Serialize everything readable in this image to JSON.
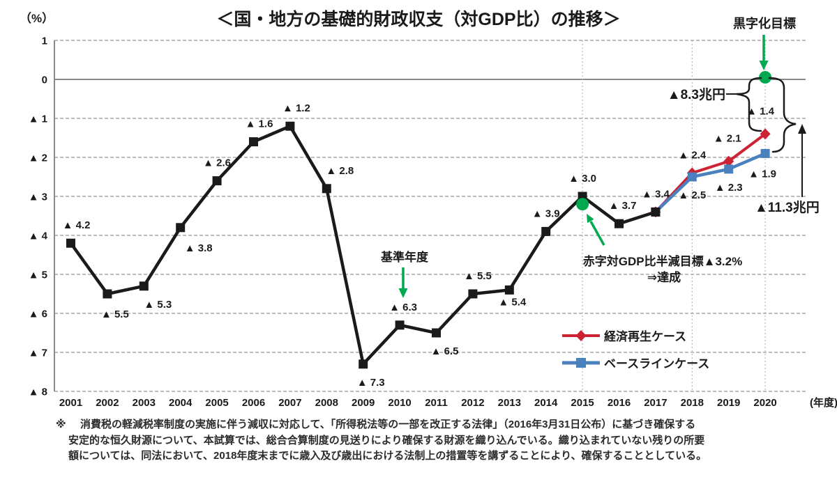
{
  "header": {
    "unit_label": "（%）",
    "title": "＜国・地方の基礎的財政収支（対GDP比）の推移＞"
  },
  "chart_data": {
    "type": "line",
    "title": "国・地方の基礎的財政収支（対GDP比）の推移",
    "y_unit": "（%）",
    "x_unit": "(年度)",
    "ylim": [
      -8,
      1
    ],
    "grid": true,
    "years": [
      2001,
      2002,
      2003,
      2004,
      2005,
      2006,
      2007,
      2008,
      2009,
      2010,
      2011,
      2012,
      2013,
      2014,
      2015,
      2016,
      2017,
      2018,
      2019,
      2020
    ],
    "yticks": [
      {
        "v": 1,
        "label": "1"
      },
      {
        "v": 0,
        "label": "0"
      },
      {
        "v": -1,
        "label": "▲ 1"
      },
      {
        "v": -2,
        "label": "▲ 2"
      },
      {
        "v": -3,
        "label": "▲ 3"
      },
      {
        "v": -4,
        "label": "▲ 4"
      },
      {
        "v": -5,
        "label": "▲ 5"
      },
      {
        "v": -6,
        "label": "▲ 6"
      },
      {
        "v": -7,
        "label": "▲ 7"
      },
      {
        "v": -8,
        "label": "▲ 8"
      }
    ],
    "vlines": [
      2015,
      2018,
      2020
    ],
    "series": [
      {
        "id": "actual",
        "color": "#1a1a1a",
        "marker": "square",
        "width": 4.5,
        "points": [
          {
            "year": 2001,
            "value": -4.2,
            "label": "▲ 4.2",
            "pos": "above",
            "dx": 8
          },
          {
            "year": 2002,
            "value": -5.5,
            "label": "▲ 5.5",
            "pos": "below",
            "dx": 11,
            "dy": 3
          },
          {
            "year": 2003,
            "value": -5.3,
            "label": "▲ 5.3",
            "pos": "below",
            "dx": 20
          },
          {
            "year": 2004,
            "value": -3.8,
            "label": "▲ 3.8",
            "pos": "below",
            "dx": 26,
            "dy": 3
          },
          {
            "year": 2005,
            "value": -2.6,
            "label": "▲ 2.6",
            "pos": "above",
            "dx": 0
          },
          {
            "year": 2006,
            "value": -1.6,
            "label": "▲ 1.6",
            "pos": "above",
            "dx": 8
          },
          {
            "year": 2007,
            "value": -1.2,
            "label": "▲ 1.2",
            "pos": "above",
            "dx": 9
          },
          {
            "year": 2008,
            "value": -2.8,
            "label": "▲ 2.8",
            "pos": "above",
            "dx": 19
          },
          {
            "year": 2009,
            "value": -7.3,
            "label": "▲ 7.3",
            "pos": "below",
            "dx": 11
          },
          {
            "year": 2010,
            "value": -6.3,
            "label": "▲ 6.3",
            "pos": "above",
            "dx": 5
          },
          {
            "year": 2011,
            "value": -6.5,
            "label": "▲ 6.5",
            "pos": "below",
            "dx": 12
          },
          {
            "year": 2012,
            "value": -5.5,
            "label": "▲ 5.5",
            "pos": "above",
            "dx": 7
          },
          {
            "year": 2013,
            "value": -5.4,
            "label": "▲ 5.4",
            "pos": "below",
            "dx": 4,
            "dy": -9
          },
          {
            "year": 2014,
            "value": -3.9,
            "label": "▲ 3.9",
            "pos": "above",
            "dx": 0
          },
          {
            "year": 2015,
            "value": -3.0,
            "label": "▲ 3.0",
            "pos": "above",
            "dx": 0
          },
          {
            "year": 2016,
            "value": -3.7,
            "label": "▲ 3.7",
            "pos": "above",
            "dx": 5
          },
          {
            "year": 2017,
            "value": -3.4,
            "label": "▲ 3.4",
            "pos": "above",
            "dx": 0
          }
        ]
      },
      {
        "id": "economic-revival-case",
        "legend": "経済再生ケース",
        "color": "#cc2231",
        "marker": "diamond",
        "width": 4,
        "points": [
          {
            "year": 2017,
            "value": -3.4,
            "label": null
          },
          {
            "year": 2018,
            "value": -2.4,
            "label": "▲ 2.4",
            "pos": "above",
            "dx": 0
          },
          {
            "year": 2019,
            "value": -2.1,
            "label": "▲ 2.1",
            "pos": "above",
            "dx": -2,
            "dy": -7
          },
          {
            "year": 2020,
            "value": -1.4,
            "label": "▲ 1.4",
            "pos": "above",
            "dx": -7,
            "dy": -7
          }
        ]
      },
      {
        "id": "baseline-case",
        "legend": "ベースラインケース",
        "color": "#4a80bd",
        "marker": "square",
        "width": 4.5,
        "points": [
          {
            "year": 2017,
            "value": -3.4,
            "label": null
          },
          {
            "year": 2018,
            "value": -2.5,
            "label": "▲ 2.5",
            "pos": "below",
            "dx": 0
          },
          {
            "year": 2019,
            "value": -2.3,
            "label": "▲ 2.3",
            "pos": "below",
            "dx": 0
          },
          {
            "year": 2020,
            "value": -1.9,
            "label": "▲ 1.9",
            "pos": "below",
            "dx": -4,
            "dy": 3
          }
        ]
      }
    ]
  },
  "annotations": {
    "green": "#00a94f",
    "surplus_target": {
      "text": "黒字化目標",
      "year": 2020,
      "value": 0
    },
    "base_year": {
      "text": "基準年度",
      "year": 2010
    },
    "half_target": {
      "line1": "赤字対GDP比半減目標▲3.2%",
      "line2": "⇒達成",
      "year": 2015,
      "value": -3.2
    },
    "gap_red": {
      "text": "▲8.3兆円"
    },
    "gap_blue": {
      "text": "▲11.3兆円"
    }
  },
  "legend": [
    {
      "label": "経済再生ケース",
      "color": "#cc2231",
      "marker": "diamond"
    },
    {
      "label": "ベースラインケース",
      "color": "#4a80bd",
      "marker": "square"
    }
  ],
  "note": {
    "marker": "※",
    "lines": [
      "消費税の軽減税率制度の実施に伴う減収に対応して、「所得税法等の一部を改正する法律」（2016年3月31日公布）に基づき確保する",
      "安定的な恒久財源について、本試算では、総合合算制度の見送りにより確保する財源を織り込んでいる。織り込まれていない残りの所要",
      "額については、同法において、2018年度末までに歳入及び歳出における法制上の措置等を講ずることにより、確保することとしている。"
    ]
  }
}
